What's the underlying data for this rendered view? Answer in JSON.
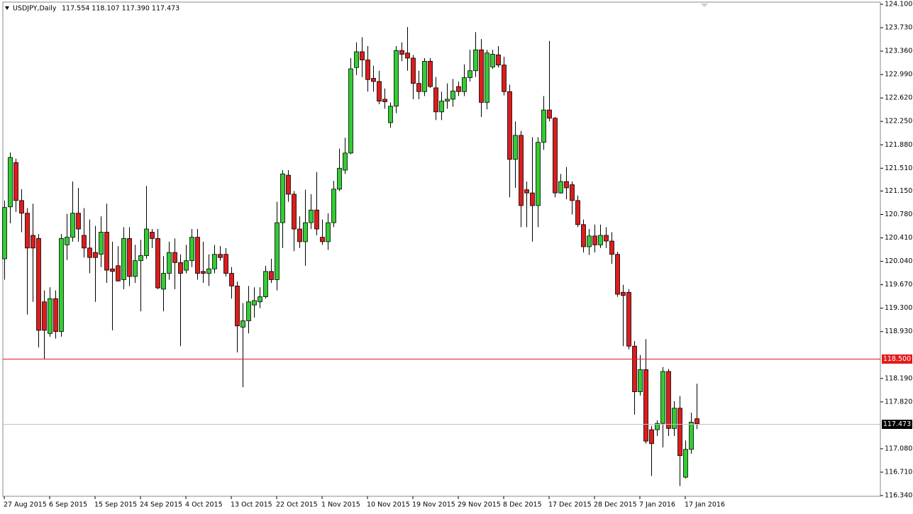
{
  "chart_data": {
    "type": "candlestick",
    "symbol": "USDJPY,Daily",
    "quote": "117.554 118.107 117.390 117.473",
    "categories": [
      "27 Aug 2015",
      null,
      null,
      null,
      null,
      null,
      null,
      null,
      "6 Sep 2015",
      null,
      null,
      null,
      null,
      null,
      null,
      null,
      "15 Sep 2015",
      null,
      null,
      null,
      null,
      null,
      null,
      null,
      "24 Sep 2015",
      null,
      null,
      null,
      null,
      null,
      null,
      null,
      "4 Oct 2015",
      null,
      null,
      null,
      null,
      null,
      null,
      null,
      "13 Oct 2015",
      null,
      null,
      null,
      null,
      null,
      null,
      null,
      "22 Oct 2015",
      null,
      null,
      null,
      null,
      null,
      null,
      null,
      "1 Nov 2015",
      null,
      null,
      null,
      null,
      null,
      null,
      null,
      "10 Nov 2015",
      null,
      null,
      null,
      null,
      null,
      null,
      null,
      "19 Nov 2015",
      null,
      null,
      null,
      null,
      null,
      null,
      null,
      "29 Nov 2015",
      null,
      null,
      null,
      null,
      null,
      null,
      null,
      "8 Dec 2015",
      null,
      null,
      null,
      null,
      null,
      null,
      null,
      "17 Dec 2015",
      null,
      null,
      null,
      null,
      null,
      null,
      null,
      "28 Dec 2015",
      null,
      null,
      null,
      null,
      null,
      null,
      null,
      "7 Jan 2016",
      null,
      null,
      null,
      null,
      null,
      null,
      null,
      "17 Jan 2016",
      null,
      null
    ],
    "ohlc": {
      "open": [
        120.08,
        120.9,
        121.6,
        121.0,
        120.8,
        120.45,
        120.4,
        119.4,
        118.9,
        119.45,
        118.93,
        120.3,
        120.42,
        120.8,
        120.45,
        120.25,
        120.18,
        120.15,
        120.5,
        119.92,
        119.97,
        119.75,
        120.4,
        119.8,
        120.05,
        120.13,
        120.5,
        120.4,
        119.6,
        119.85,
        120.18,
        120.02,
        119.9,
        120.05,
        120.42,
        119.88,
        119.85,
        119.92,
        120.15,
        120.15,
        119.85,
        119.65,
        119.0,
        119.1,
        119.35,
        119.4,
        119.48,
        119.88,
        119.75,
        120.65,
        121.4,
        121.1,
        120.55,
        120.35,
        120.65,
        120.85,
        120.42,
        120.35,
        120.65,
        121.18,
        121.48,
        121.75,
        123.1,
        123.35,
        123.22,
        122.93,
        122.88,
        122.6,
        122.23,
        122.49,
        123.37,
        123.33,
        123.25,
        122.85,
        122.72,
        123.2,
        122.78,
        122.4,
        122.57,
        122.6,
        122.8,
        122.72,
        122.94,
        123.05,
        123.38,
        122.55,
        123.11,
        123.3,
        123.14,
        122.72,
        121.65,
        122.03,
        121.17,
        121.12,
        120.92,
        121.92,
        122.43,
        122.3,
        121.12,
        121.3,
        121.25,
        121.0,
        120.62,
        120.27,
        120.44,
        120.3,
        120.45,
        120.36,
        120.15,
        119.55,
        119.55,
        118.7,
        117.98,
        118.33,
        117.38,
        117.38,
        117.48,
        118.3,
        117.4,
        117.72,
        116.63,
        117.07,
        117.554
      ],
      "high": [
        121.0,
        121.76,
        121.66,
        121.18,
        120.88,
        120.95,
        120.47,
        119.58,
        119.63,
        119.58,
        120.47,
        120.79,
        121.3,
        121.2,
        120.88,
        120.7,
        120.6,
        120.75,
        120.95,
        120.35,
        120.28,
        120.58,
        120.58,
        120.3,
        120.38,
        121.23,
        120.55,
        120.55,
        120.12,
        120.35,
        120.4,
        120.15,
        120.3,
        120.55,
        120.55,
        120.35,
        120.15,
        120.3,
        120.28,
        120.25,
        119.95,
        119.72,
        119.38,
        119.65,
        119.63,
        119.63,
        119.97,
        120.08,
        120.98,
        121.48,
        121.48,
        121.15,
        120.75,
        121.17,
        121.1,
        121.45,
        120.7,
        120.8,
        121.31,
        121.82,
        121.99,
        123.25,
        123.5,
        123.58,
        123.44,
        123.13,
        123.05,
        122.77,
        122.55,
        123.44,
        123.5,
        123.74,
        123.3,
        123.05,
        123.25,
        123.25,
        122.95,
        122.72,
        122.85,
        122.92,
        122.88,
        123.15,
        123.38,
        123.66,
        123.55,
        123.38,
        123.38,
        123.44,
        123.27,
        122.83,
        122.25,
        122.1,
        121.3,
        122.0,
        122.0,
        122.65,
        123.52,
        122.32,
        121.42,
        121.53,
        121.3,
        121.08,
        120.7,
        120.55,
        120.62,
        120.62,
        120.58,
        120.5,
        120.19,
        119.67,
        119.6,
        118.78,
        118.56,
        118.81,
        117.44,
        117.53,
        118.37,
        118.34,
        117.83,
        117.91,
        117.21,
        117.65,
        118.107
      ],
      "low": [
        119.75,
        120.64,
        120.82,
        120.5,
        119.2,
        119.4,
        118.68,
        118.5,
        118.85,
        118.82,
        118.85,
        120.06,
        120.35,
        120.35,
        120.1,
        119.85,
        119.4,
        119.95,
        119.7,
        118.95,
        119.72,
        119.6,
        119.65,
        119.7,
        119.25,
        120.08,
        120.25,
        119.6,
        119.25,
        119.75,
        119.6,
        118.7,
        119.85,
        119.95,
        119.75,
        119.7,
        119.65,
        119.85,
        120.05,
        119.8,
        119.45,
        118.6,
        118.05,
        118.9,
        119.15,
        119.3,
        119.45,
        119.7,
        119.58,
        120.25,
        120.98,
        120.2,
        120.25,
        119.97,
        120.55,
        120.45,
        120.3,
        120.22,
        120.58,
        121.15,
        121.42,
        121.73,
        122.98,
        122.95,
        122.72,
        122.72,
        122.52,
        122.45,
        122.15,
        122.38,
        123.2,
        123.05,
        122.6,
        122.6,
        122.65,
        122.78,
        122.27,
        122.27,
        122.45,
        122.48,
        122.65,
        122.65,
        122.88,
        122.95,
        122.32,
        122.44,
        123.08,
        123.1,
        122.66,
        121.05,
        121.2,
        120.58,
        120.58,
        120.35,
        120.58,
        121.8,
        122.25,
        121.05,
        121.11,
        121.02,
        120.78,
        120.58,
        120.18,
        120.14,
        120.18,
        120.25,
        120.25,
        120.0,
        119.48,
        118.7,
        118.65,
        117.62,
        117.92,
        117.16,
        116.65,
        117.28,
        117.1,
        117.28,
        117.28,
        116.49,
        116.61,
        117.0,
        117.39
      ],
      "close": [
        120.89,
        121.68,
        121.0,
        120.8,
        120.25,
        120.25,
        118.95,
        118.95,
        119.45,
        118.93,
        120.4,
        120.42,
        120.8,
        120.55,
        120.25,
        120.1,
        120.1,
        120.5,
        119.9,
        119.88,
        119.73,
        120.4,
        119.8,
        120.05,
        120.13,
        120.55,
        120.4,
        119.62,
        119.85,
        120.18,
        120.02,
        119.85,
        120.05,
        120.42,
        119.85,
        119.85,
        119.92,
        120.15,
        120.1,
        119.85,
        119.65,
        119.02,
        119.1,
        119.4,
        119.42,
        119.48,
        119.88,
        119.75,
        120.65,
        121.42,
        121.1,
        120.55,
        120.35,
        120.65,
        120.85,
        120.55,
        120.35,
        120.65,
        121.18,
        121.51,
        121.75,
        123.08,
        123.35,
        123.22,
        122.91,
        122.88,
        122.57,
        122.56,
        122.49,
        123.37,
        123.31,
        123.25,
        122.85,
        122.72,
        123.2,
        122.8,
        122.4,
        122.57,
        122.6,
        122.73,
        122.72,
        122.94,
        123.05,
        123.38,
        122.55,
        123.33,
        123.31,
        123.14,
        122.72,
        121.65,
        122.03,
        120.92,
        121.12,
        120.92,
        121.92,
        122.43,
        122.3,
        121.12,
        121.3,
        121.2,
        121.0,
        120.62,
        120.27,
        120.44,
        120.3,
        120.45,
        120.36,
        120.15,
        119.52,
        119.5,
        118.7,
        117.98,
        118.33,
        117.2,
        117.16,
        117.48,
        118.3,
        117.4,
        117.72,
        116.97,
        117.07,
        117.5,
        117.473
      ]
    },
    "up_color": "#33cc33",
    "down_color": "#dd1c1c",
    "ylim": [
      116.34,
      124.1
    ],
    "yticks": [
      {
        "value": 124.1,
        "label": "124.100"
      },
      {
        "value": 123.73,
        "label": "123.730"
      },
      {
        "value": 123.36,
        "label": "123.360"
      },
      {
        "value": 122.99,
        "label": "122.990"
      },
      {
        "value": 122.62,
        "label": "122.620"
      },
      {
        "value": 122.25,
        "label": "122.250"
      },
      {
        "value": 121.88,
        "label": "121.880"
      },
      {
        "value": 121.51,
        "label": "121.510"
      },
      {
        "value": 121.15,
        "label": "121.150"
      },
      {
        "value": 120.78,
        "label": "120.780"
      },
      {
        "value": 120.41,
        "label": "120.410"
      },
      {
        "value": 120.04,
        "label": "120.040"
      },
      {
        "value": 119.67,
        "label": "119.670"
      },
      {
        "value": 119.3,
        "label": "119.300"
      },
      {
        "value": 118.93,
        "label": "118.930"
      },
      {
        "value": 118.19,
        "label": "118.190"
      },
      {
        "value": 117.82,
        "label": "117.820"
      },
      {
        "value": 117.08,
        "label": "117.080"
      },
      {
        "value": 116.71,
        "label": "116.710"
      },
      {
        "value": 116.34,
        "label": "116.340"
      }
    ],
    "hlines": [
      {
        "value": 118.5,
        "label": "118.500",
        "color": "#e31b1b"
      },
      {
        "value": 117.473,
        "label": "117.473",
        "color": "#c0c0c0"
      }
    ]
  }
}
